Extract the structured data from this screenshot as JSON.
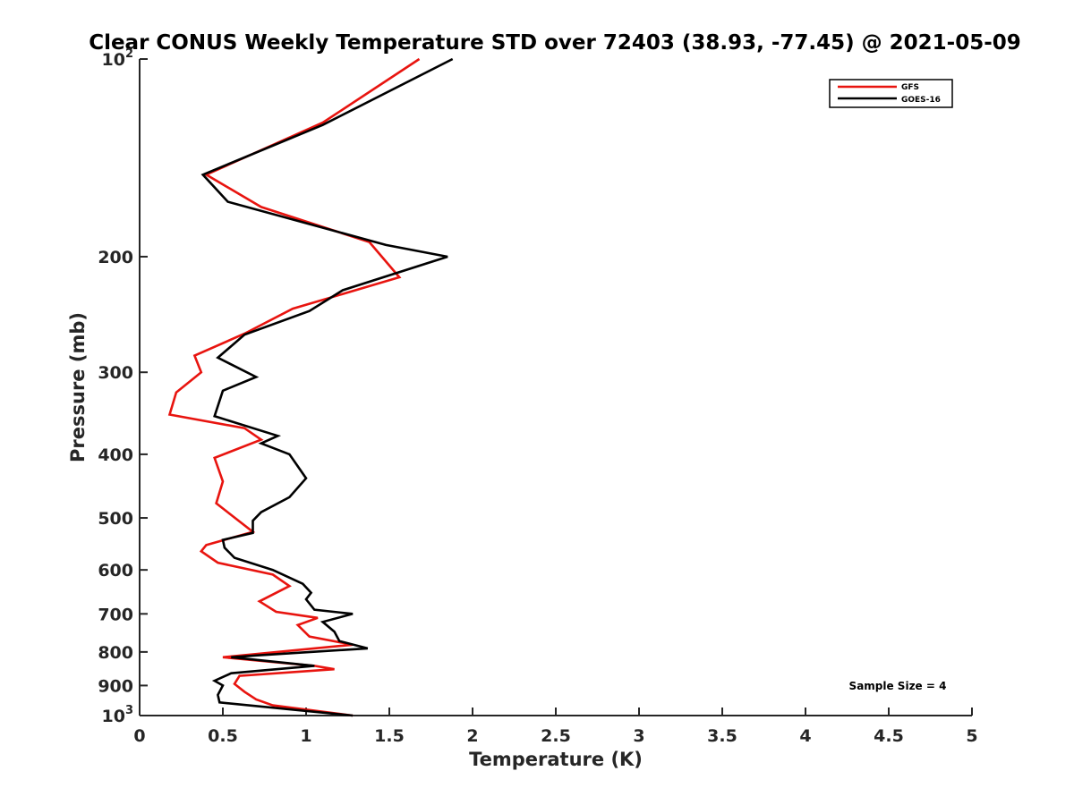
{
  "chart_data": {
    "type": "line",
    "title": "Clear CONUS Weekly Temperature STD over 72403 (38.93, -77.45) @ 2021-05-09",
    "xlabel": "Temperature (K)",
    "ylabel": "Pressure (mb)",
    "xlim": [
      0,
      5
    ],
    "ylim": [
      100,
      1000
    ],
    "y_scale": "log",
    "y_reversed": true,
    "grid": false,
    "legend_position": "top-right",
    "x_ticks": [
      0,
      0.5,
      1,
      1.5,
      2,
      2.5,
      3,
      3.5,
      4,
      4.5,
      5
    ],
    "x_tick_labels": [
      "0",
      "0.5",
      "1",
      "1.5",
      "2",
      "2.5",
      "3",
      "3.5",
      "4",
      "4.5",
      "5"
    ],
    "y_ticks": [
      100,
      200,
      300,
      400,
      500,
      600,
      700,
      800,
      900,
      1000
    ],
    "y_tick_labels": [
      "10^2",
      "200",
      "300",
      "400",
      "500",
      "600",
      "700",
      "800",
      "900",
      "10^3"
    ],
    "annotation": "Sample Size = 4",
    "series": [
      {
        "name": "GFS",
        "color": "#e8140f",
        "points": [
          [
            1.68,
            100
          ],
          [
            1.1,
            125
          ],
          [
            0.4,
            150
          ],
          [
            0.73,
            168
          ],
          [
            1.38,
            190
          ],
          [
            1.56,
            215
          ],
          [
            0.92,
            240
          ],
          [
            0.63,
            262
          ],
          [
            0.33,
            283
          ],
          [
            0.37,
            300
          ],
          [
            0.22,
            322
          ],
          [
            0.18,
            348
          ],
          [
            0.63,
            365
          ],
          [
            0.73,
            380
          ],
          [
            0.45,
            405
          ],
          [
            0.5,
            440
          ],
          [
            0.46,
            475
          ],
          [
            0.68,
            525
          ],
          [
            0.4,
            550
          ],
          [
            0.37,
            562
          ],
          [
            0.47,
            585
          ],
          [
            0.8,
            610
          ],
          [
            0.9,
            635
          ],
          [
            0.72,
            670
          ],
          [
            0.82,
            695
          ],
          [
            1.07,
            710
          ],
          [
            0.95,
            728
          ],
          [
            1.02,
            758
          ],
          [
            1.28,
            780
          ],
          [
            0.5,
            815
          ],
          [
            1.05,
            840
          ],
          [
            1.17,
            850
          ],
          [
            0.6,
            870
          ],
          [
            0.57,
            895
          ],
          [
            0.63,
            920
          ],
          [
            0.7,
            945
          ],
          [
            0.8,
            965
          ],
          [
            1.28,
            1000
          ]
        ]
      },
      {
        "name": "GOES-16",
        "color": "#000000",
        "points": [
          [
            1.88,
            100
          ],
          [
            1.1,
            126
          ],
          [
            0.38,
            150
          ],
          [
            0.53,
            165
          ],
          [
            1.48,
            192
          ],
          [
            1.85,
            200
          ],
          [
            1.22,
            225
          ],
          [
            1.02,
            242
          ],
          [
            0.63,
            263
          ],
          [
            0.47,
            285
          ],
          [
            0.7,
            305
          ],
          [
            0.5,
            320
          ],
          [
            0.45,
            350
          ],
          [
            0.83,
            375
          ],
          [
            0.73,
            385
          ],
          [
            0.9,
            400
          ],
          [
            1.0,
            435
          ],
          [
            0.9,
            465
          ],
          [
            0.73,
            490
          ],
          [
            0.68,
            505
          ],
          [
            0.68,
            527
          ],
          [
            0.5,
            540
          ],
          [
            0.51,
            555
          ],
          [
            0.57,
            575
          ],
          [
            0.8,
            600
          ],
          [
            0.98,
            630
          ],
          [
            1.03,
            650
          ],
          [
            1.0,
            665
          ],
          [
            1.05,
            690
          ],
          [
            1.28,
            700
          ],
          [
            1.1,
            720
          ],
          [
            1.17,
            745
          ],
          [
            1.2,
            770
          ],
          [
            1.37,
            790
          ],
          [
            0.7,
            810
          ],
          [
            0.55,
            815
          ],
          [
            1.05,
            840
          ],
          [
            0.55,
            862
          ],
          [
            0.45,
            885
          ],
          [
            0.5,
            900
          ],
          [
            0.47,
            930
          ],
          [
            0.48,
            955
          ],
          [
            1.28,
            1000
          ]
        ]
      }
    ]
  }
}
